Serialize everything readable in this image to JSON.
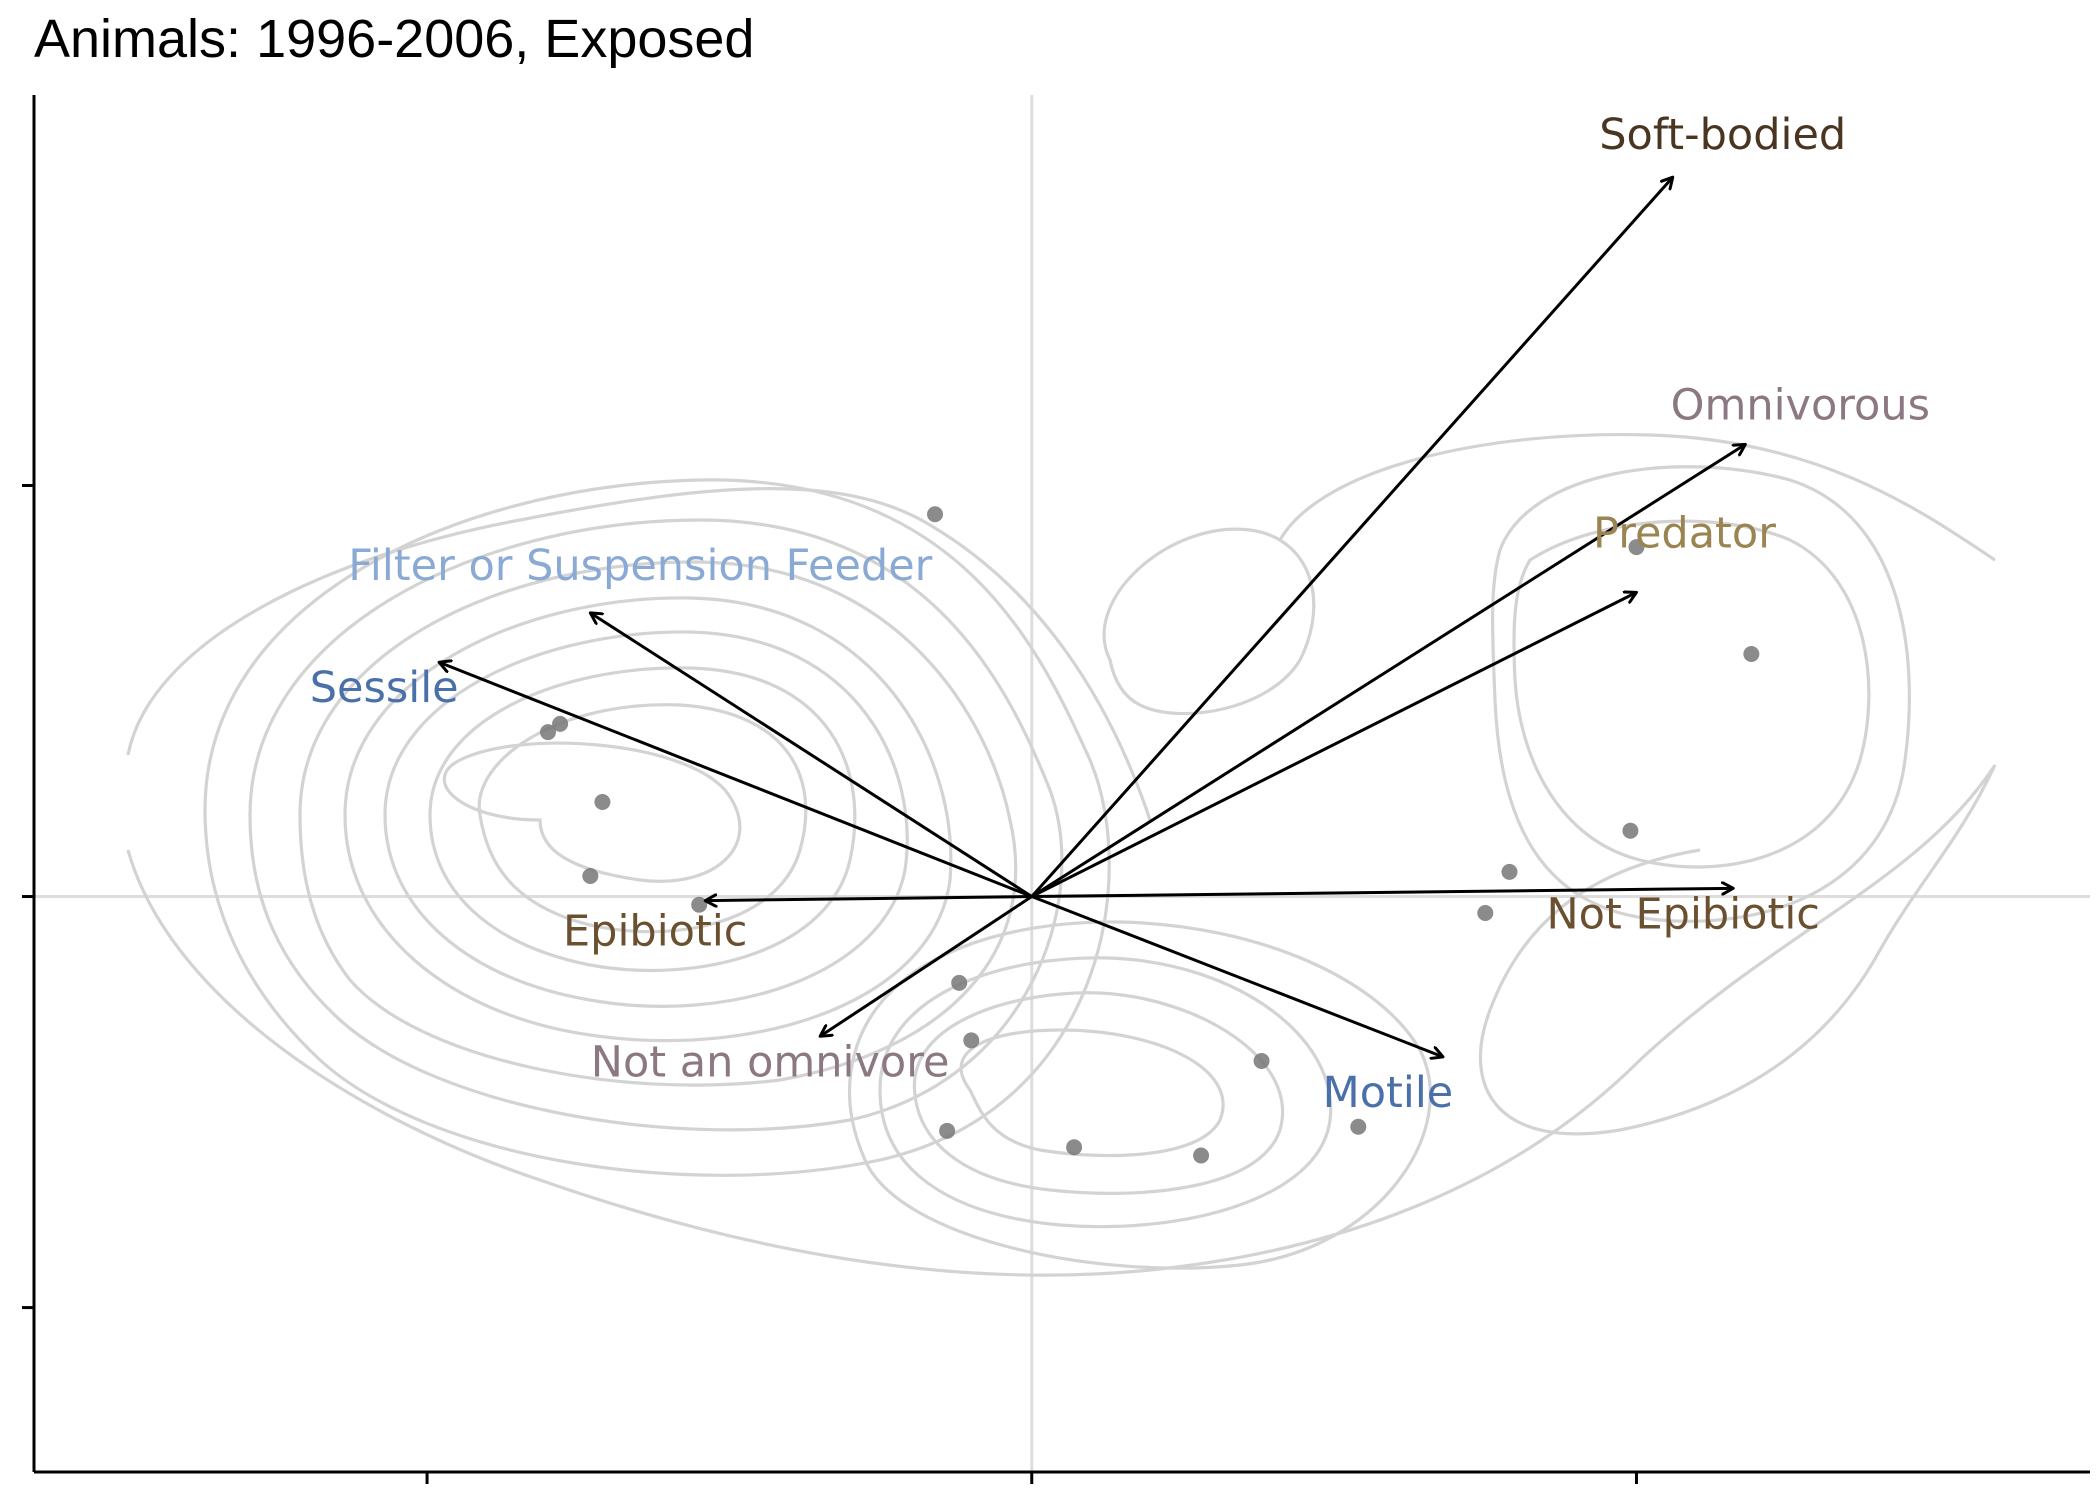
{
  "chart_data": {
    "type": "biplot",
    "title": "Animals: 1996-2006, Exposed",
    "xlabel": "",
    "ylabel": "",
    "xlim": [
      -1.65,
      1.75
    ],
    "ylim": [
      -1.4,
      1.95
    ],
    "x_ticks": [
      -1,
      0,
      1
    ],
    "y_ticks": [
      -1,
      0,
      1
    ],
    "grid": "zero-lines only",
    "legend": "none",
    "points": [
      {
        "x": -0.16,
        "y": 0.93
      },
      {
        "x": 1.0,
        "y": 0.85
      },
      {
        "x": 1.19,
        "y": 0.59
      },
      {
        "x": -0.78,
        "y": 0.42
      },
      {
        "x": -0.8,
        "y": 0.4
      },
      {
        "x": -0.71,
        "y": 0.23
      },
      {
        "x": -0.73,
        "y": 0.05
      },
      {
        "x": -0.55,
        "y": -0.02
      },
      {
        "x": 0.99,
        "y": 0.16
      },
      {
        "x": 0.79,
        "y": 0.06
      },
      {
        "x": 0.75,
        "y": -0.04
      },
      {
        "x": -0.12,
        "y": -0.21
      },
      {
        "x": -0.1,
        "y": -0.35
      },
      {
        "x": -0.14,
        "y": -0.57
      },
      {
        "x": 0.07,
        "y": -0.61
      },
      {
        "x": 0.28,
        "y": -0.63
      },
      {
        "x": 0.38,
        "y": -0.4
      },
      {
        "x": 0.54,
        "y": -0.56
      }
    ],
    "vectors": [
      {
        "label": "Soft-bodied",
        "x": 1.06,
        "y": 1.75,
        "color": "#4a3520"
      },
      {
        "label": "Omnivorous",
        "x": 1.18,
        "y": 1.1,
        "color": "#8c7882"
      },
      {
        "label": "Predator",
        "x": 1.0,
        "y": 0.74,
        "color": "#9a8550"
      },
      {
        "label": "Not Epibiotic",
        "x": 1.16,
        "y": 0.02,
        "color": "#6b5030"
      },
      {
        "label": "Motile",
        "x": 0.68,
        "y": -0.39,
        "color": "#4a70aa"
      },
      {
        "label": "Not an omnivore",
        "x": -0.35,
        "y": -0.34,
        "color": "#8c7882"
      },
      {
        "label": "Epibiotic",
        "x": -0.54,
        "y": -0.01,
        "color": "#6b5030"
      },
      {
        "label": "Sessile",
        "x": -0.98,
        "y": 0.57,
        "color": "#4a70aa"
      },
      {
        "label": "Filter or Suspension Feeder",
        "x": -0.73,
        "y": 0.69,
        "color": "#8aaad5"
      }
    ],
    "density_contours": "grey 2D kernel density contours (two modes)",
    "colors": {
      "points": "#777777",
      "contours": "#d3d3d3",
      "arrows": "#000000",
      "zero_lines": "#dddddd",
      "axes": "#000000"
    }
  }
}
